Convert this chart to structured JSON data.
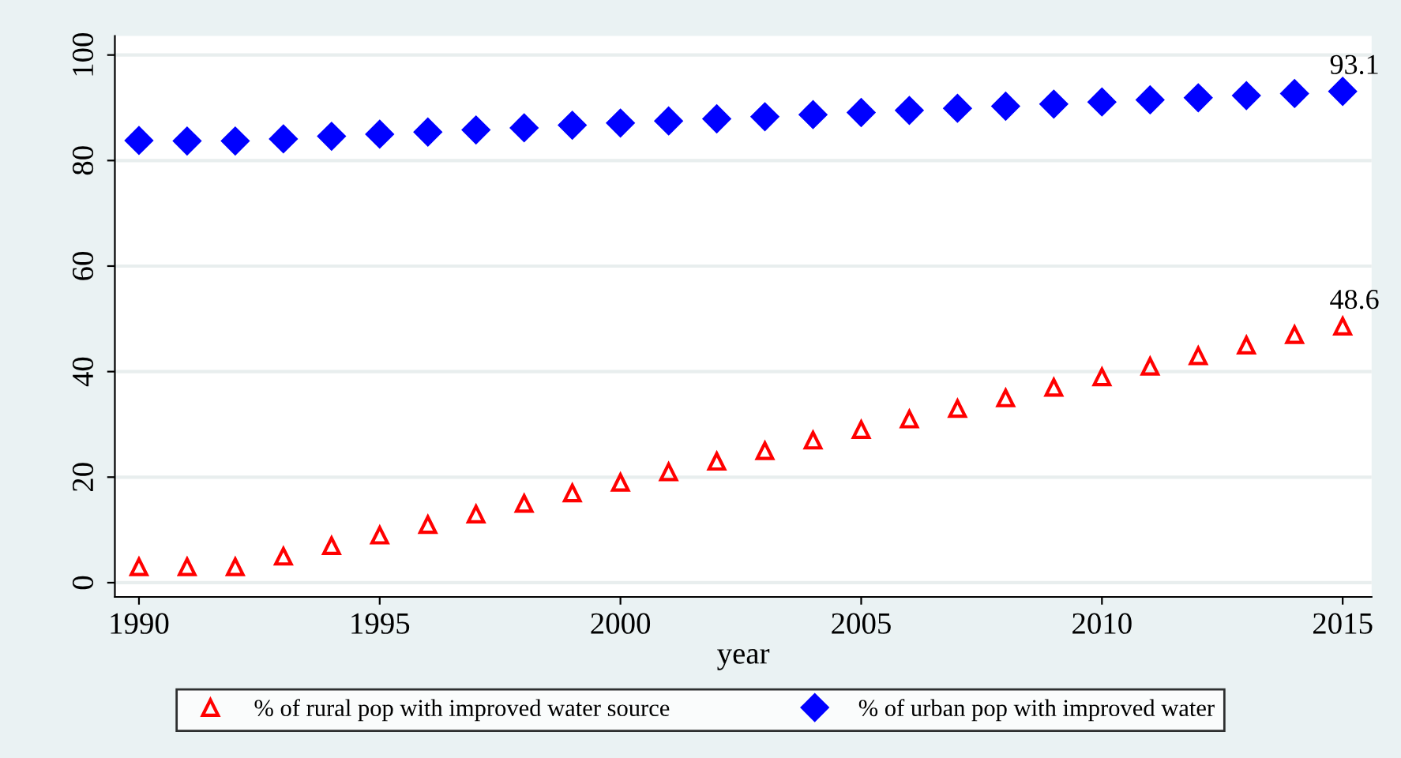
{
  "chart_data": {
    "type": "scatter",
    "xlabel": "year",
    "x": [
      1990,
      1991,
      1992,
      1993,
      1994,
      1995,
      1996,
      1997,
      1998,
      1999,
      2000,
      2001,
      2002,
      2003,
      2004,
      2005,
      2006,
      2007,
      2008,
      2009,
      2010,
      2011,
      2012,
      2013,
      2014,
      2015
    ],
    "series": [
      {
        "name": "% of rural pop with improved water source",
        "color": "#ff0000",
        "marker": "triangle",
        "values": [
          3,
          3,
          3,
          5,
          7,
          9,
          11,
          13,
          15,
          17,
          19,
          21,
          23,
          25,
          27,
          29,
          31,
          33,
          35,
          37,
          39,
          41,
          43,
          45,
          47,
          48.6
        ]
      },
      {
        "name": "% of urban pop with improved water",
        "color": "#0000ff",
        "marker": "diamond",
        "values": [
          83.8,
          83.7,
          83.7,
          84.1,
          84.6,
          85.0,
          85.4,
          85.8,
          86.2,
          86.7,
          87.1,
          87.5,
          87.9,
          88.3,
          88.7,
          89.1,
          89.5,
          89.9,
          90.3,
          90.7,
          91.1,
          91.5,
          91.9,
          92.3,
          92.7,
          93.1
        ]
      }
    ],
    "annotations": [
      {
        "text": "48.6",
        "x": 2015,
        "y": 48.6
      },
      {
        "text": "93.1",
        "x": 2015,
        "y": 93.1
      }
    ],
    "xlim": [
      1989.5,
      2015.6
    ],
    "xticks": [
      1990,
      1995,
      2000,
      2005,
      2010,
      2015
    ],
    "ylim": [
      -2.7,
      103.6
    ],
    "yticks": [
      0,
      20,
      40,
      60,
      80,
      100
    ],
    "grid": "y",
    "legend": "bottom"
  }
}
